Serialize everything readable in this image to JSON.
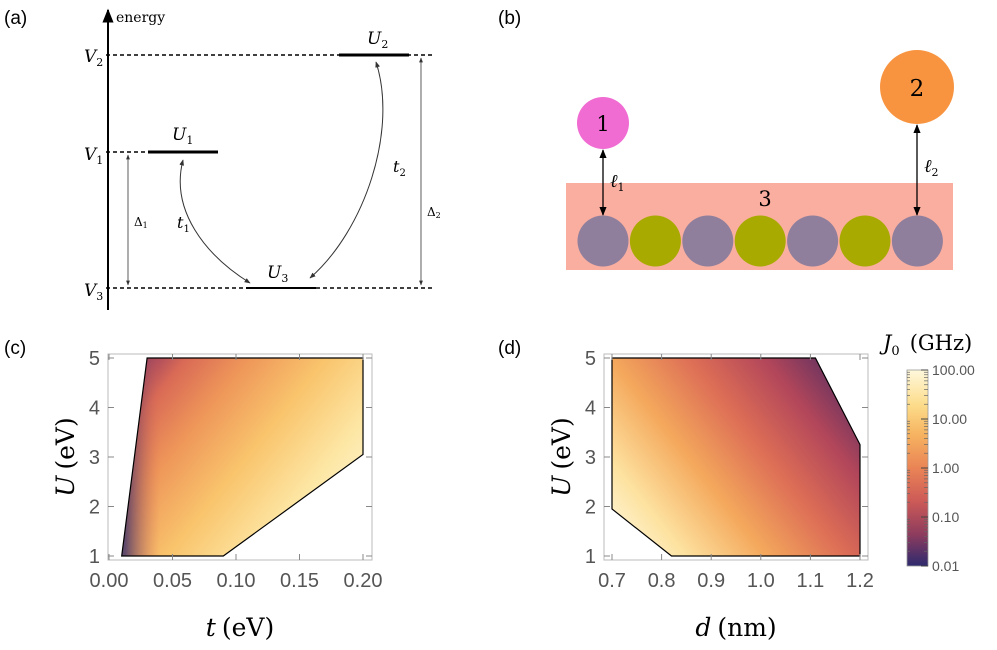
{
  "panels": {
    "a": {
      "label": "(a)",
      "axis_label": "energy",
      "levels": [
        {
          "name": "V",
          "sub": "1"
        },
        {
          "name": "V",
          "sub": "2"
        },
        {
          "name": "V",
          "sub": "3"
        }
      ],
      "states": [
        {
          "name": "U",
          "sub": "1"
        },
        {
          "name": "U",
          "sub": "2"
        },
        {
          "name": "U",
          "sub": "3"
        }
      ],
      "hops": [
        {
          "name": "t",
          "sub": "1"
        },
        {
          "name": "t",
          "sub": "2"
        }
      ],
      "gaps": [
        {
          "name": "Δ",
          "sub": "1"
        },
        {
          "name": "Δ",
          "sub": "2"
        }
      ]
    },
    "b": {
      "label": "(b)",
      "dot1": "1",
      "dot2": "2",
      "wire": "3",
      "dist1": {
        "name": "ℓ",
        "sub": "1"
      },
      "dist2": {
        "name": "ℓ",
        "sub": "2"
      },
      "atoms": [
        "gray",
        "olive",
        "gray",
        "olive",
        "gray",
        "olive",
        "gray"
      ],
      "colors": {
        "dot1": "#f06bd2",
        "dot2": "#f89440",
        "wire": "#f9aea0",
        "gray": "#8f7f9c",
        "olive": "#a8aa00"
      }
    },
    "c": {
      "label": "(c)"
    },
    "d": {
      "label": "(d)"
    }
  },
  "chart_data": [
    {
      "type": "heatmap",
      "panel": "c",
      "xlabel": {
        "var": "t",
        "unit": "(eV)"
      },
      "ylabel": {
        "var": "U",
        "unit": "(eV)"
      },
      "xlim": [
        0.0,
        0.2
      ],
      "ylim": [
        1,
        5
      ],
      "xticks": [
        "0.00",
        "0.05",
        "0.10",
        "0.15",
        "0.20"
      ],
      "yticks": [
        "1",
        "2",
        "3",
        "4",
        "5"
      ],
      "region": [
        [
          0.01,
          1
        ],
        [
          0.03,
          5
        ],
        [
          0.2,
          5
        ],
        [
          0.2,
          3.05
        ],
        [
          0.09,
          1
        ]
      ],
      "trend": "J0 increases with t, decreases with U"
    },
    {
      "type": "heatmap",
      "panel": "d",
      "xlabel": {
        "var": "d",
        "unit": "(nm)"
      },
      "ylabel": {
        "var": "U",
        "unit": "(eV)"
      },
      "xlim": [
        0.7,
        1.2
      ],
      "ylim": [
        1,
        5
      ],
      "xticks": [
        "0.7",
        "0.8",
        "0.9",
        "1.0",
        "1.1",
        "1.2"
      ],
      "yticks": [
        "1",
        "2",
        "3",
        "4",
        "5"
      ],
      "region": [
        [
          0.7,
          5
        ],
        [
          1.11,
          5
        ],
        [
          1.2,
          3.25
        ],
        [
          1.2,
          1
        ],
        [
          0.82,
          1
        ],
        [
          0.7,
          1.95
        ]
      ],
      "trend": "J0 decreases with d and with U"
    }
  ],
  "colorbar": {
    "title": {
      "var": "J",
      "sub": "0",
      "unit": "(GHz)"
    },
    "ticks": [
      "100.00",
      "10.00",
      "1.00",
      "0.10",
      "0.01"
    ],
    "range": [
      0.01,
      100
    ],
    "scale": "log",
    "colors": [
      "#fff7d9",
      "#fbd37b",
      "#f2a152",
      "#dc6c55",
      "#b3465a",
      "#73345e",
      "#2d2a6e"
    ]
  }
}
